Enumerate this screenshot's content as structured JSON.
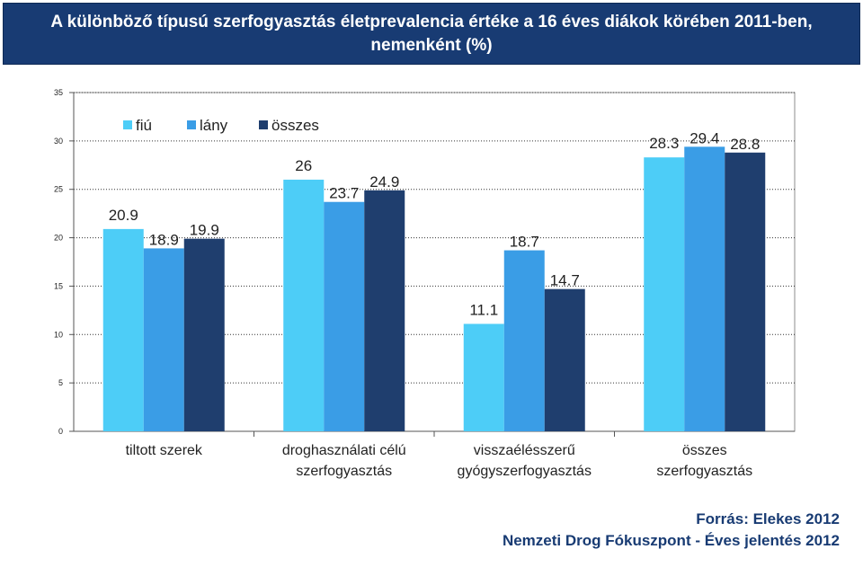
{
  "header": {
    "title_line1": "A különböző típusú szerfogyasztás életprevalencia értéke a 16 éves diákok körében 2011-ben,",
    "title_line2": "nemenként (%)"
  },
  "footer": {
    "source_line1": "Forrás: Elekes 2012",
    "source_line2": "Nemzeti Drog Fókuszpont  - Éves jelentés 2012"
  },
  "chart_data": {
    "type": "bar",
    "title": "A különböző típusú szerfogyasztás életprevalencia értéke a 16 éves diákok körében 2011-ben, nemenként (%)",
    "categories": [
      [
        "tiltott szerek"
      ],
      [
        "droghasználati célú",
        "szerfogyasztás"
      ],
      [
        "visszaélésszerű",
        "gyógyszerfogyasztás"
      ],
      [
        "összes",
        "szerfogyasztás"
      ]
    ],
    "series": [
      {
        "name": "fiú",
        "color": "#4dcdf7",
        "values": [
          20.9,
          26,
          11.1,
          28.3
        ]
      },
      {
        "name": "lány",
        "color": "#3a9de6",
        "values": [
          18.9,
          23.7,
          18.7,
          29.4
        ]
      },
      {
        "name": "összes",
        "color": "#1f3e6e",
        "values": [
          19.9,
          24.9,
          14.7,
          28.8
        ]
      }
    ],
    "ylim": [
      0,
      35
    ],
    "yticks": [
      0,
      5,
      10,
      15,
      20,
      25,
      30,
      35
    ],
    "grid": true,
    "legend_position": "top-left"
  }
}
